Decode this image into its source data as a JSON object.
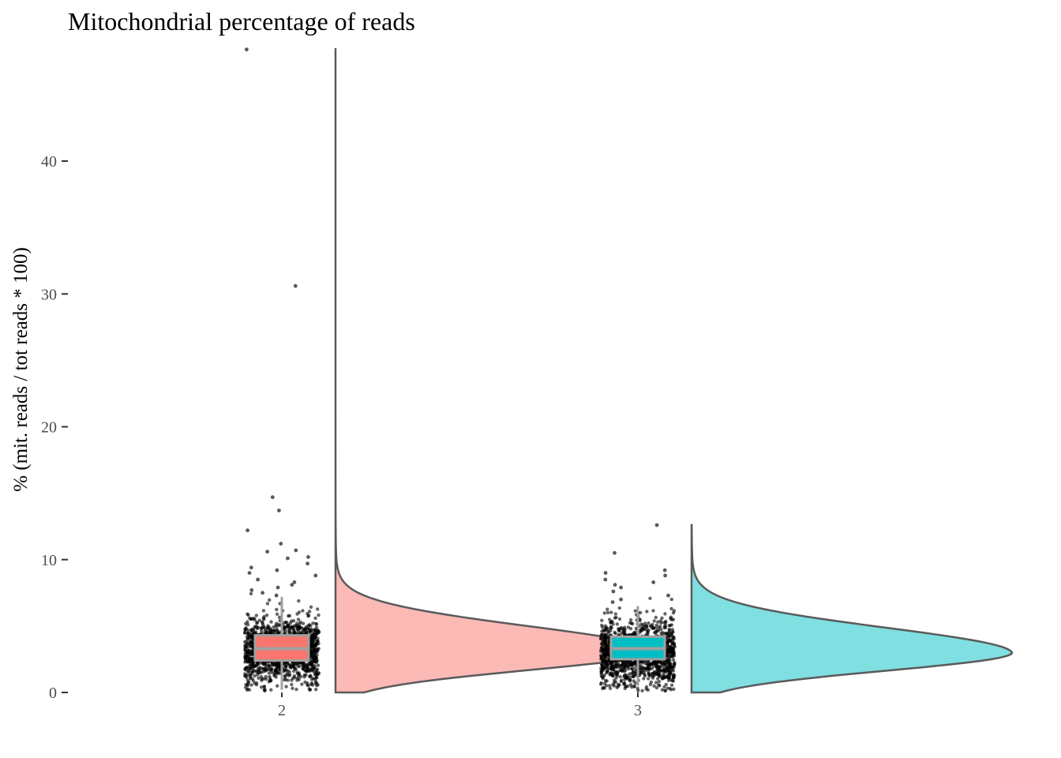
{
  "chart_data": {
    "type": "raincloud",
    "title": "Mitochondrial percentage of reads",
    "xlabel": "",
    "ylabel": "% (mit. reads / tot reads * 100)",
    "categories": [
      "2",
      "3"
    ],
    "ylim": [
      0,
      48.5
    ],
    "yticks": [
      0,
      10,
      20,
      30,
      40
    ],
    "grid": false,
    "legend": "none",
    "series": [
      {
        "category": "2",
        "fill_color": "#F8766D",
        "box": {
          "min": 0.2,
          "q1": 2.4,
          "median": 3.3,
          "q3": 4.3,
          "max": 7.2
        },
        "density_peak_y": 3.1,
        "density_max_y": 48.5,
        "outliers": [
          48.4,
          30.6,
          14.7,
          13.7,
          12.2,
          11.2,
          10.7,
          10.6,
          10.2,
          10.1,
          9.7,
          9.4,
          9.2,
          9.0,
          8.8,
          8.5,
          8.3,
          8.1,
          7.9,
          7.7,
          7.5,
          7.3
        ]
      },
      {
        "category": "3",
        "fill_color": "#00BFC4",
        "box": {
          "min": 0.5,
          "q1": 2.5,
          "median": 3.3,
          "q3": 4.2,
          "max": 6.5
        },
        "density_peak_y": 3.0,
        "density_max_y": 12.6,
        "outliers": [
          12.6,
          10.5,
          9.2,
          9.0,
          8.8,
          8.5,
          8.3,
          8.1,
          7.9,
          7.6,
          7.3,
          7.0,
          6.8
        ]
      }
    ]
  }
}
